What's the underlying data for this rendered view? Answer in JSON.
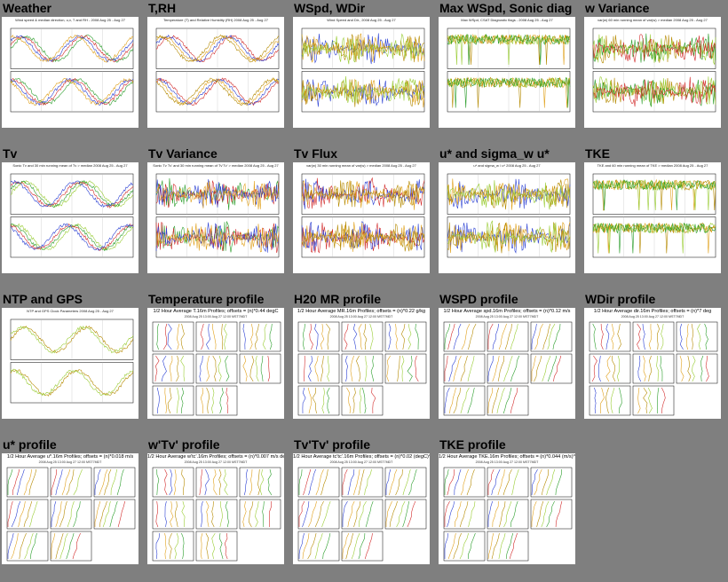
{
  "colors": {
    "background": "#7f7f7f",
    "thumb_bg": "#ffffff",
    "series": [
      "#2a9d2a",
      "#d22b2b",
      "#2a3fd2",
      "#e0a01a",
      "#b58a00",
      "#99cc33"
    ]
  },
  "tiles": [
    {
      "title": "Weather",
      "kind": "timeseries",
      "caption": "Wind speed & median direction, u,v, T and RH - 2008 Aug 25 - Aug 27"
    },
    {
      "title": "T,RH",
      "kind": "timeseries",
      "caption": "Temperature (T) and Relative Humidity (RH) 2008 Aug 25 - Aug 27"
    },
    {
      "title": "WSpd, WDir",
      "kind": "timeseries",
      "caption": "Wind Speed and Dir., 2008 Aug 25 - Aug 27"
    },
    {
      "title": "Max WSpd, Sonic diag",
      "kind": "timeseries",
      "caption": "Max WSpd, CSAT Diagnostic flags - 2008 Aug 25 - Aug 27"
    },
    {
      "title": "w Variance",
      "kind": "timeseries",
      "caption": "var(w) 60 min running mean of var(w) > median 2008 Aug 25 - Aug 27"
    },
    {
      "title": "Tv",
      "kind": "timeseries",
      "caption": "Sonic Tv and 30 min running mean of Tv > median 2008 Aug 25 - Aug 27"
    },
    {
      "title": "Tv Variance",
      "kind": "timeseries",
      "caption": "Sonic Tv Tv' and 30 min running mean of Tv'Tv' > median 2008 Aug 25 - Aug 27"
    },
    {
      "title": "Tv Flux",
      "kind": "timeseries",
      "caption": "var(w) 30 min running mean of var(w) > median 2008 Aug 25 - Aug 27"
    },
    {
      "title": "u* and sigma_w u*",
      "kind": "timeseries",
      "caption": "u* and sigma_w / u* 2008 Aug 25 - Aug 27"
    },
    {
      "title": "TKE",
      "kind": "timeseries",
      "caption": "TKE and 60 min running mean of TKE > median 2008 Aug 25 - Aug 27"
    },
    {
      "title": "NTP and GPS",
      "kind": "timeseries",
      "caption": "NTP and GPS Clock Parameters 2008 Aug 25 - Aug 27"
    },
    {
      "title": "Temperature profile",
      "kind": "profile",
      "caption": "1/2 Hour Average T.16m Profiles; offsets = (n)*0.44 degC",
      "sub": "2008 Aug 25 13:00 Aug 27 12:00 MST7MDT"
    },
    {
      "title": "H20 MR profile",
      "kind": "profile",
      "caption": "1/2 Hour Average MR.16m Profiles; offsets = (n)*0.22 g/kg",
      "sub": "2008 Aug 25 13:00 Aug 27 12:00 MST7MDT"
    },
    {
      "title": "WSPD profile",
      "kind": "profile",
      "caption": "1/2 Hour Average spd.16m Profiles; offsets = (n)*0.12 m/s",
      "sub": "2008 Aug 25 13:00 Aug 27 12:00 MST7MDT"
    },
    {
      "title": "WDir profile",
      "kind": "profile",
      "caption": "1/2 Hour Average dir.16m Profiles; offsets = (n)*7 deg",
      "sub": "2008 Aug 25 13:00 Aug 27 12:00 MST7MDT"
    },
    {
      "title": "u* profile",
      "kind": "profile",
      "caption": "1/2 Hour Average u*.16m Profiles; offsets = (n)*0.018 m/s",
      "sub": "2008 Aug 25 13:00 Aug 27 12:00 MST7MDT"
    },
    {
      "title": "w'Tv' profile",
      "kind": "profile",
      "caption": "1/2 Hour Average w'tc'.16m Profiles; offsets = (n)*0.007 m/s degC",
      "sub": "2008 Aug 25 13:00 Aug 27 12:00 MST7MDT"
    },
    {
      "title": "Tv'Tv' profile",
      "kind": "profile",
      "caption": "1/2 Hour Average tc'tc'.16m Profiles; offsets = (n)*0.02 (degC)^2",
      "sub": "2008 Aug 25 13:00 Aug 27 12:00 MST7MDT"
    },
    {
      "title": "TKE profile",
      "kind": "profile",
      "caption": "1/2 Hour Average TKE.16m Profiles; offsets = (n)*0.044 (m/s)^2",
      "sub": "2008 Aug 25 13:00 Aug 27 12:00 MST7MDT"
    }
  ]
}
